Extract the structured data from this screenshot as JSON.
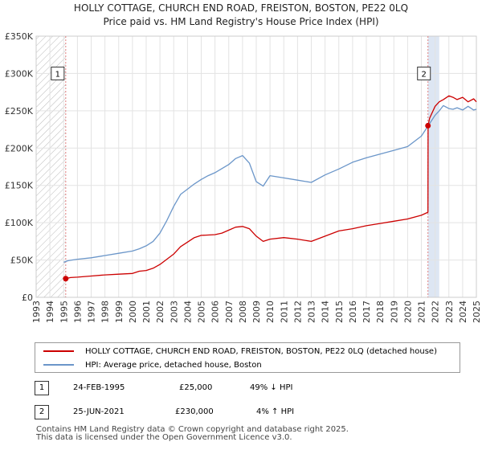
{
  "title_line1": "HOLLY COTTAGE, CHURCH END ROAD, FREISTON, BOSTON, PE22 0LQ",
  "title_line2": "Price paid vs. HM Land Registry's House Price Index (HPI)",
  "colors": {
    "price": "#cc0000",
    "hpi": "#6b96c9",
    "marker": "#cc0000",
    "grid": "#e3e3e3",
    "hatch": "#bbbbbb",
    "shade": "#dde6f3",
    "sale_line": "#e08080"
  },
  "chart_data": {
    "type": "line",
    "title": "HOLLY COTTAGE, CHURCH END ROAD, FREISTON, BOSTON, PE22 0LQ",
    "subtitle": "Price paid vs. HM Land Registry's House Price Index (HPI)",
    "xlabel": "",
    "ylabel": "",
    "xlim": [
      1993,
      2025
    ],
    "ylim": [
      0,
      350000
    ],
    "x_ticks": [
      "1993",
      "1994",
      "1995",
      "1996",
      "1997",
      "1998",
      "1999",
      "2000",
      "2001",
      "2002",
      "2003",
      "2004",
      "2005",
      "2006",
      "2007",
      "2008",
      "2009",
      "2010",
      "2011",
      "2012",
      "2013",
      "2014",
      "2015",
      "2016",
      "2017",
      "2018",
      "2019",
      "2020",
      "2021",
      "2022",
      "2023",
      "2024",
      "2025"
    ],
    "y_ticks": [
      0,
      50000,
      100000,
      150000,
      200000,
      250000,
      300000,
      350000
    ],
    "y_tick_labels": [
      "£0",
      "£50K",
      "£100K",
      "£150K",
      "£200K",
      "£250K",
      "£300K",
      "£350K"
    ],
    "series": [
      {
        "name": "HOLLY COTTAGE, CHURCH END ROAD, FREISTON, BOSTON, PE22 0LQ (detached house)",
        "x": [
          1995.15,
          1995.5,
          1996,
          1997,
          1998,
          1999,
          2000,
          2000.5,
          2001,
          2001.5,
          2002,
          2002.5,
          2003,
          2003.5,
          2004,
          2004.5,
          2005,
          2006,
          2006.5,
          2007,
          2007.5,
          2008,
          2008.5,
          2009,
          2009.5,
          2010,
          2011,
          2012,
          2013,
          2014,
          2015,
          2016,
          2017,
          2018,
          2019,
          2020,
          2021,
          2021.48,
          2021.49,
          2021.6,
          2022,
          2022.3,
          2022.6,
          2023,
          2023.3,
          2023.6,
          2024,
          2024.4,
          2024.8,
          2025
        ],
        "values": [
          25000,
          26500,
          27000,
          28500,
          30000,
          31000,
          32000,
          35000,
          36000,
          39000,
          44000,
          51000,
          58000,
          68000,
          74000,
          80000,
          83000,
          84000,
          86000,
          90000,
          94000,
          95000,
          92000,
          82000,
          75000,
          78000,
          80000,
          78000,
          75000,
          82000,
          89000,
          92000,
          96000,
          99000,
          102000,
          105000,
          110000,
          114000,
          230000,
          240000,
          256000,
          262000,
          265000,
          270000,
          268000,
          265000,
          268000,
          262000,
          266000,
          262000
        ]
      },
      {
        "name": "HPI: Average price, detached house, Boston",
        "x": [
          1995,
          1995.3,
          1995.6,
          1996,
          1997,
          1998,
          1999,
          2000,
          2000.5,
          2001,
          2001.5,
          2002,
          2002.5,
          2003,
          2003.5,
          2004,
          2004.5,
          2005,
          2005.5,
          2006,
          2007,
          2007.5,
          2008,
          2008.5,
          2009,
          2009.5,
          2010,
          2011,
          2012,
          2013,
          2014,
          2015,
          2016,
          2017,
          2018,
          2019,
          2020,
          2021,
          2021.5,
          2022,
          2022.3,
          2022.6,
          2023,
          2023.3,
          2023.6,
          2024,
          2024.4,
          2024.8,
          2025
        ],
        "values": [
          47000,
          49000,
          50000,
          51000,
          53000,
          56000,
          59000,
          62000,
          65000,
          69000,
          75000,
          86000,
          103000,
          122000,
          138000,
          145000,
          152000,
          158000,
          163000,
          167000,
          178000,
          186000,
          190000,
          180000,
          155000,
          149000,
          163000,
          160000,
          157000,
          154000,
          164000,
          172000,
          181000,
          187000,
          192000,
          197000,
          202000,
          216000,
          230000,
          244000,
          250000,
          257000,
          253000,
          252000,
          254000,
          251000,
          256000,
          251000,
          252000
        ]
      }
    ],
    "annotations": [
      {
        "label": "1",
        "x": 1995.15,
        "price": 25000
      },
      {
        "label": "2",
        "x": 2021.48,
        "price": 230000
      }
    ]
  },
  "legend": {
    "price_label": "HOLLY COTTAGE, CHURCH END ROAD, FREISTON, BOSTON, PE22 0LQ (detached house)",
    "hpi_label": "HPI: Average price, detached house, Boston"
  },
  "transactions": [
    {
      "num": "1",
      "date": "24-FEB-1995",
      "price": "£25,000",
      "hpi": "49% ↓ HPI"
    },
    {
      "num": "2",
      "date": "25-JUN-2021",
      "price": "£230,000",
      "hpi": "4% ↑ HPI"
    }
  ],
  "footer": {
    "line1": "Contains HM Land Registry data © Crown copyright and database right 2025.",
    "line2": "This data is licensed under the Open Government Licence v3.0."
  }
}
